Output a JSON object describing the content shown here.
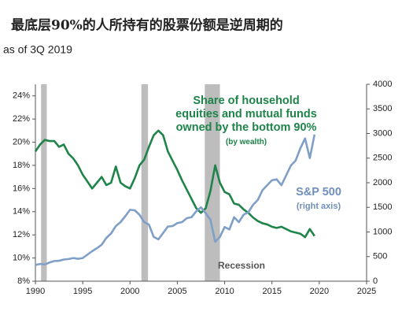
{
  "chart_data": {
    "type": "line",
    "title": "最底层90%的人所持有的股票份额是逆周期的",
    "subtitle": "as of 3Q 2019",
    "x": [
      1990.0,
      1990.5,
      1991.0,
      1991.5,
      1992.0,
      1992.5,
      1993.0,
      1993.5,
      1994.0,
      1994.5,
      1995.0,
      1995.5,
      1996.0,
      1996.5,
      1997.0,
      1997.5,
      1998.0,
      1998.5,
      1999.0,
      1999.5,
      2000.0,
      2000.5,
      2001.0,
      2001.5,
      2002.0,
      2002.5,
      2003.0,
      2003.5,
      2004.0,
      2004.5,
      2005.0,
      2005.5,
      2006.0,
      2006.5,
      2007.0,
      2007.5,
      2008.0,
      2008.5,
      2009.0,
      2009.5,
      2010.0,
      2010.5,
      2011.0,
      2011.5,
      2012.0,
      2012.5,
      2013.0,
      2013.5,
      2014.0,
      2014.5,
      2015.0,
      2015.5,
      2016.0,
      2016.5,
      2017.0,
      2017.5,
      2018.0,
      2018.5,
      2019.0,
      2019.5
    ],
    "series": [
      {
        "name": "Share of household equities and mutual funds owned by the bottom 90%",
        "note": "(by wealth)",
        "color": "#1e8449",
        "values": [
          19.2,
          19.8,
          20.2,
          20.1,
          20.1,
          19.6,
          19.8,
          19.0,
          18.6,
          18.0,
          17.2,
          16.6,
          16.0,
          16.5,
          17.0,
          16.3,
          16.5,
          17.9,
          16.5,
          16.2,
          16.0,
          16.9,
          18.0,
          18.5,
          19.6,
          20.6,
          21.0,
          20.6,
          19.2,
          18.4,
          17.6,
          16.7,
          15.9,
          15.1,
          14.3,
          13.9,
          14.3,
          15.8,
          18.0,
          16.5,
          15.7,
          15.5,
          14.7,
          14.6,
          14.2,
          13.9,
          13.5,
          13.2,
          13.0,
          12.9,
          12.7,
          12.6,
          12.7,
          12.5,
          12.3,
          12.2,
          12.1,
          11.8,
          12.5,
          11.9
        ]
      },
      {
        "name": "S&P 500",
        "note": "(right axis)",
        "color": "#7f9fc8",
        "axis": "y2",
        "values": [
          330,
          350,
          340,
          380,
          410,
          415,
          440,
          450,
          470,
          455,
          470,
          540,
          610,
          670,
          740,
          880,
          970,
          1120,
          1200,
          1320,
          1450,
          1440,
          1350,
          1200,
          1150,
          900,
          850,
          980,
          1110,
          1120,
          1180,
          1200,
          1280,
          1300,
          1420,
          1500,
          1380,
          1250,
          800,
          900,
          1100,
          1050,
          1300,
          1200,
          1350,
          1400,
          1550,
          1650,
          1850,
          1950,
          2050,
          2070,
          1950,
          2150,
          2350,
          2450,
          2700,
          2900,
          2500,
          2980
        ]
      }
    ],
    "recessions": {
      "label": "Recession",
      "spans": [
        [
          1990.6,
          1991.2
        ],
        [
          2001.2,
          2001.9
        ],
        [
          2007.9,
          2009.5
        ]
      ]
    },
    "xlim": [
      1990,
      2025
    ],
    "xticks": [
      1990,
      1995,
      2000,
      2005,
      2010,
      2015,
      2020,
      2025
    ],
    "ylim": [
      8,
      25
    ],
    "yticks": [
      {
        "value": 8,
        "label": "8%"
      },
      {
        "value": 10,
        "label": "10%"
      },
      {
        "value": 12,
        "label": "12%"
      },
      {
        "value": 14,
        "label": "14%"
      },
      {
        "value": 16,
        "label": "16%"
      },
      {
        "value": 18,
        "label": "18%"
      },
      {
        "value": 20,
        "label": "20%"
      },
      {
        "value": 22,
        "label": "22%"
      },
      {
        "value": 24,
        "label": "24%"
      }
    ],
    "y2lim": [
      0,
      4000
    ],
    "y2ticks": [
      0,
      500,
      1000,
      1500,
      2000,
      2500,
      3000,
      3500,
      4000
    ]
  }
}
